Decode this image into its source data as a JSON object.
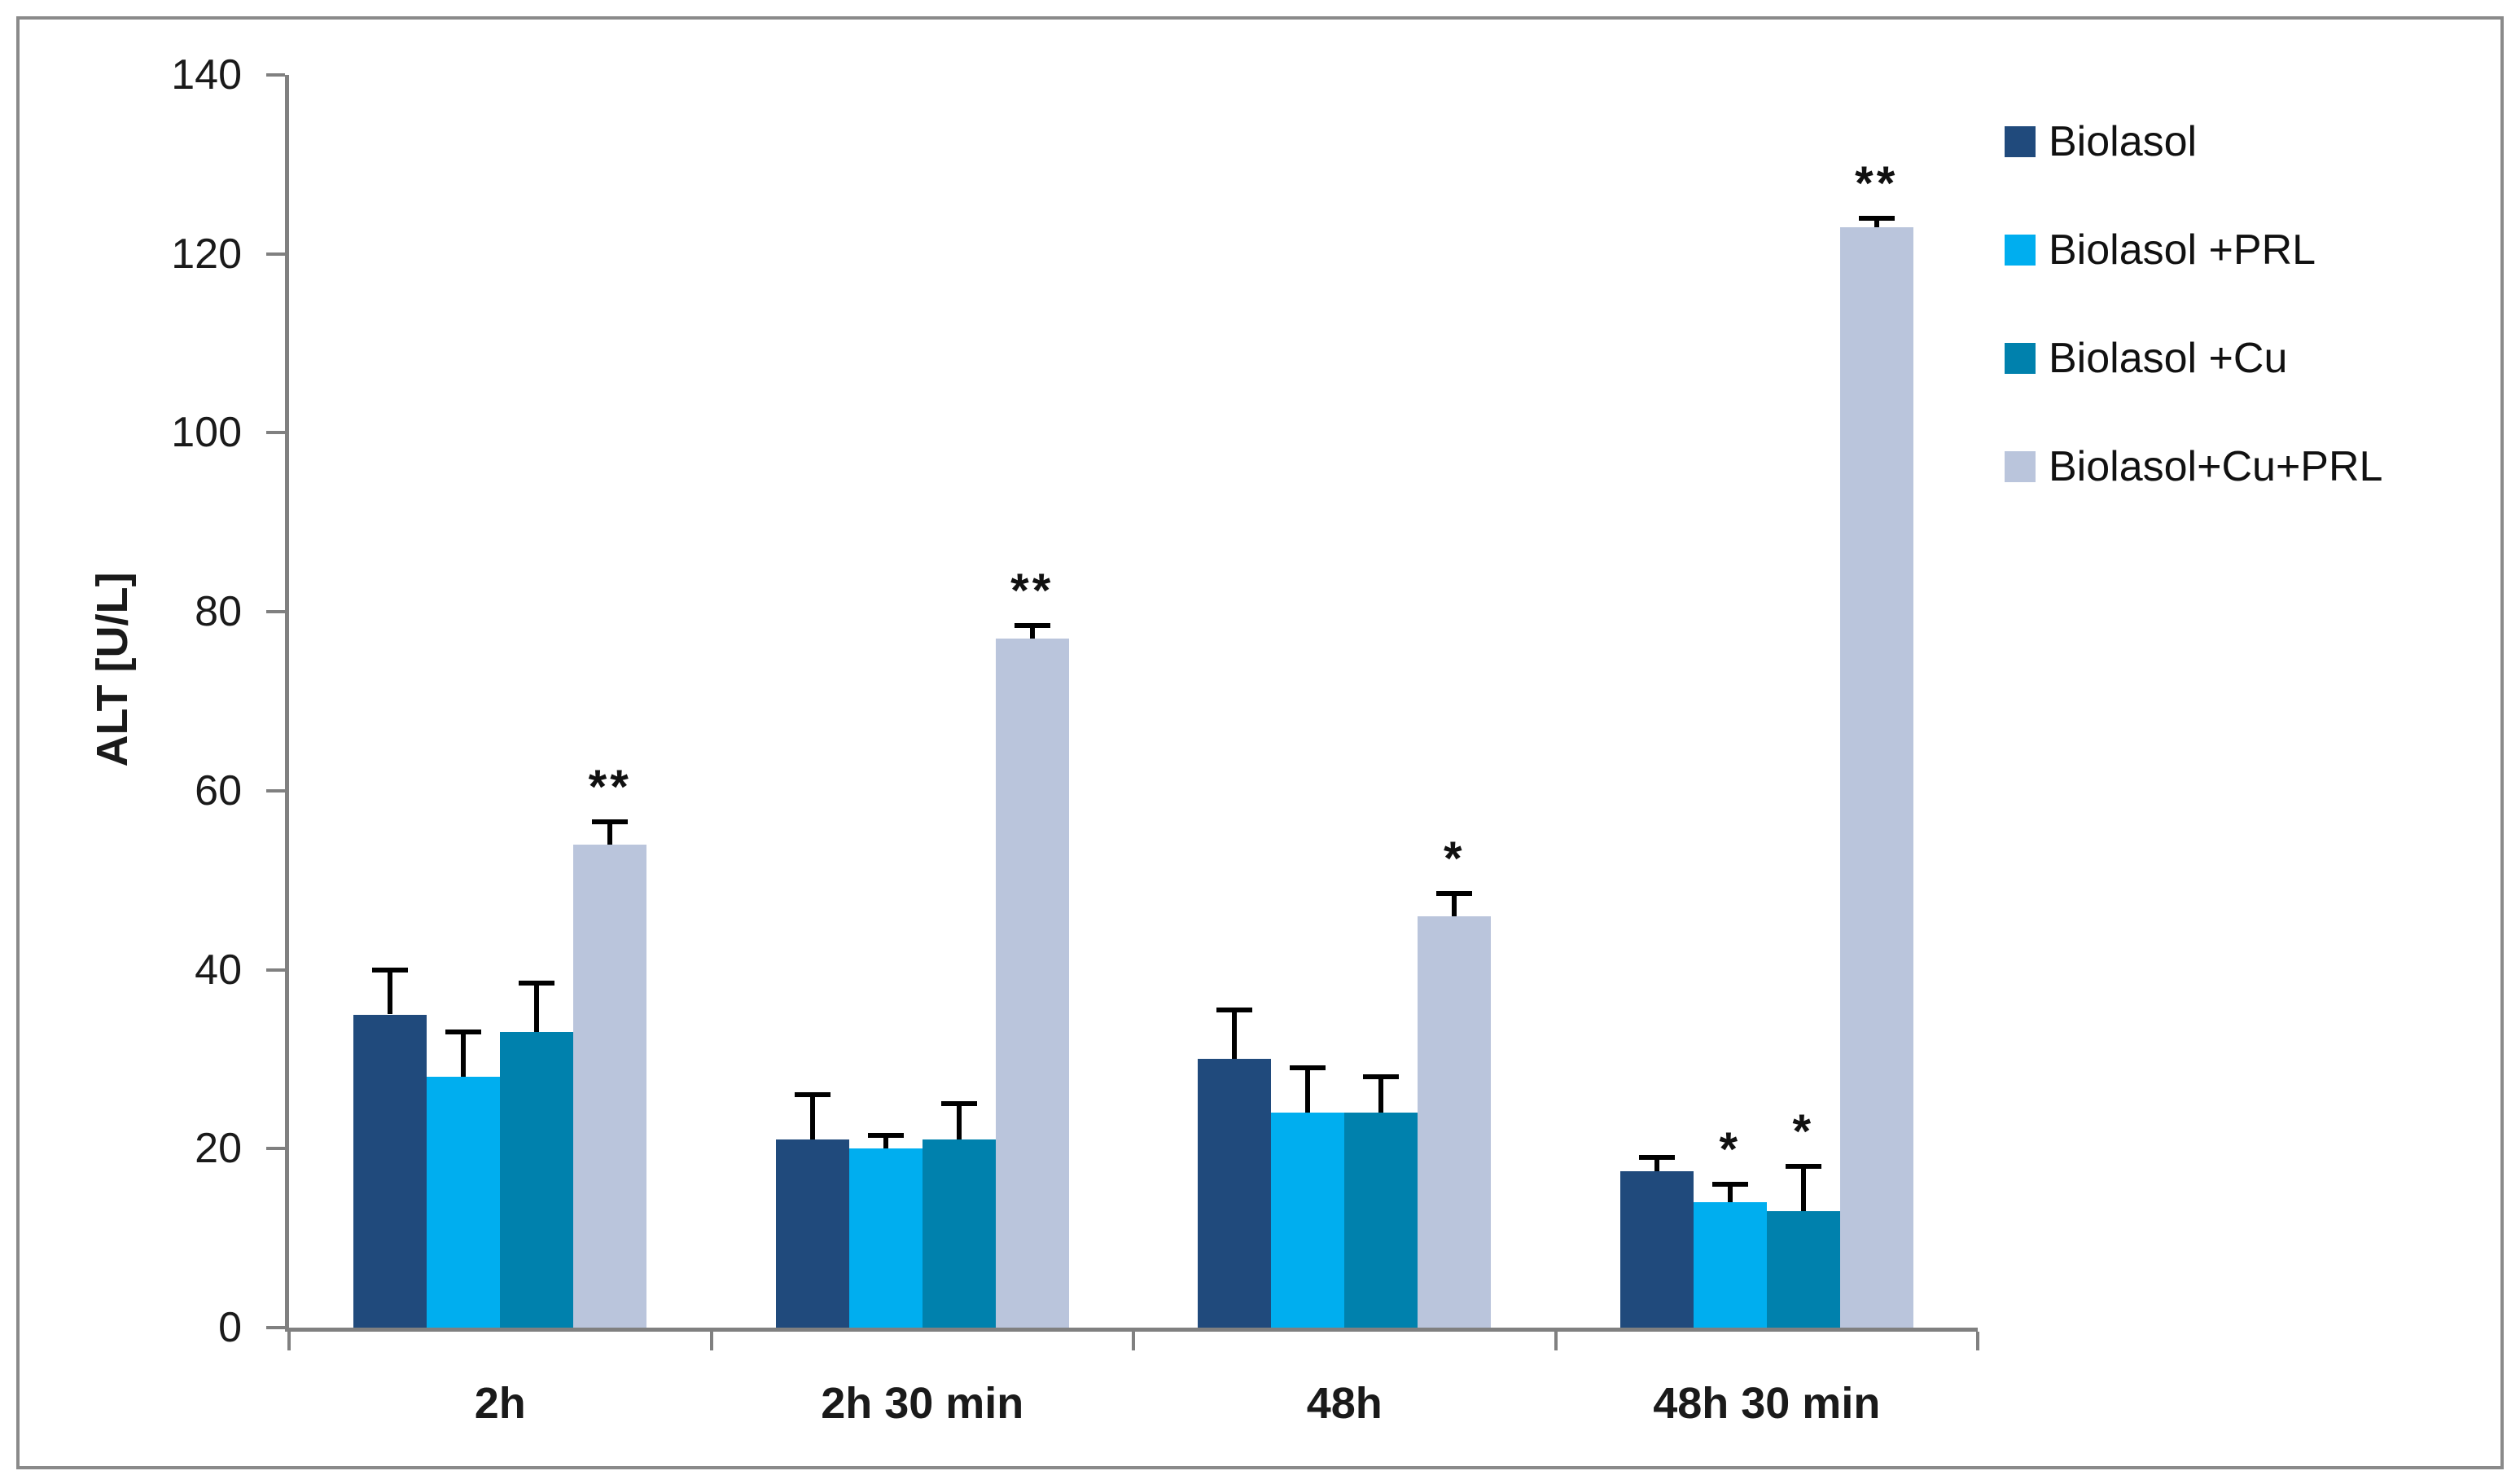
{
  "figure": {
    "border_color": "#8a8a8a",
    "axis_color": "#808080",
    "background": "#ffffff"
  },
  "chart_data": {
    "type": "bar",
    "title": "",
    "xlabel": "",
    "ylabel": "ALT [U/L]",
    "ylim": [
      0,
      140
    ],
    "yticks": [
      0,
      20,
      40,
      60,
      80,
      100,
      120,
      140
    ],
    "grid": false,
    "legend_position": "right",
    "categories": [
      "2h",
      "2h 30 min",
      "48h",
      "48h 30 min"
    ],
    "series": [
      {
        "name": "Biolasol",
        "color": "#204A7C",
        "values": [
          35,
          21,
          30,
          17.5
        ],
        "errors_plus": [
          5,
          5,
          5.5,
          1.5
        ],
        "significance": [
          "",
          "",
          "",
          ""
        ]
      },
      {
        "name": "Biolasol +PRL",
        "color": "#00AEEF",
        "values": [
          28,
          20,
          24,
          14
        ],
        "errors_plus": [
          5,
          1.5,
          5,
          2
        ],
        "significance": [
          "",
          "",
          "",
          "*"
        ]
      },
      {
        "name": "Biolasol +Cu",
        "color": "#0081AD",
        "values": [
          33,
          21,
          24,
          13
        ],
        "errors_plus": [
          5.5,
          4,
          4,
          5
        ],
        "significance": [
          "",
          "",
          "",
          "*"
        ]
      },
      {
        "name": "Biolasol+Cu+PRL",
        "color": "#BAC5DC",
        "values": [
          54,
          77,
          46,
          123
        ],
        "errors_plus": [
          2.5,
          1.5,
          2.5,
          1
        ],
        "significance": [
          "**",
          "**",
          "*",
          "**"
        ]
      }
    ]
  }
}
